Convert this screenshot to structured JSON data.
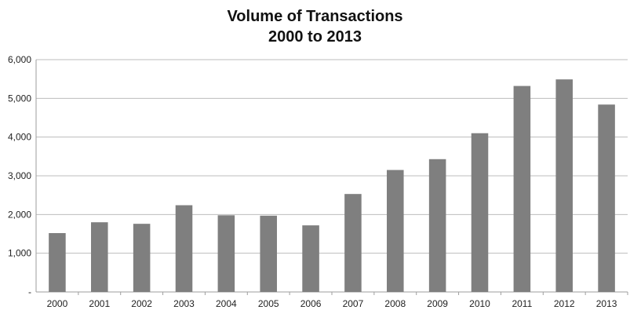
{
  "chart_data": {
    "type": "bar",
    "title": "Volume of Transactions",
    "subtitle": "2000 to 2013",
    "xlabel": "",
    "ylabel": "",
    "categories": [
      "2000",
      "2001",
      "2002",
      "2003",
      "2004",
      "2005",
      "2006",
      "2007",
      "2008",
      "2009",
      "2010",
      "2011",
      "2012",
      "2013"
    ],
    "values": [
      1520,
      1800,
      1760,
      2240,
      1980,
      1970,
      1720,
      2530,
      3150,
      3430,
      4100,
      5320,
      5490,
      4840
    ],
    "ylim": [
      0,
      6000
    ],
    "yticks": [
      0,
      1000,
      2000,
      3000,
      4000,
      5000,
      6000
    ],
    "ytick_labels": [
      "-",
      "1,000",
      "2,000",
      "3,000",
      "4,000",
      "5,000",
      "6,000"
    ],
    "grid": true,
    "legend": "none",
    "colors": {
      "bar": "#7f7f7f",
      "grid": "#bdbdbd",
      "axis": "#9e9e9e"
    }
  }
}
